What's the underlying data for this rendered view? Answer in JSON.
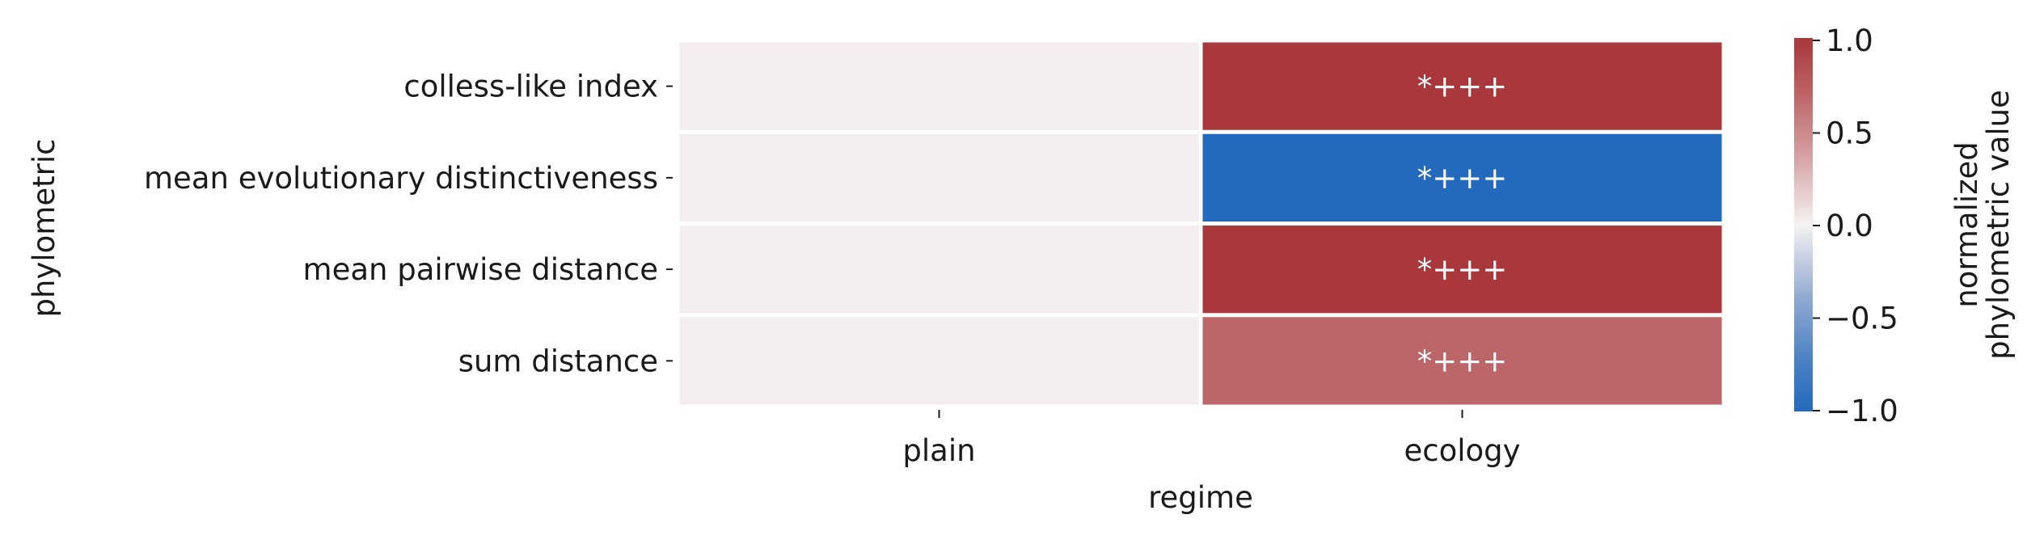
{
  "chart_data": {
    "type": "heatmap",
    "title": "",
    "xlabel": "regime",
    "ylabel": "phylometric",
    "x_categories": [
      "plain",
      "ecology"
    ],
    "y_categories": [
      "colless-like index",
      "mean evolutionary distinctiveness",
      "mean pairwise distance",
      "sum distance"
    ],
    "values": [
      [
        0.03,
        1.0
      ],
      [
        0.03,
        -1.0
      ],
      [
        0.03,
        1.0
      ],
      [
        0.03,
        0.75
      ]
    ],
    "annotations": [
      [
        "",
        "*+++"
      ],
      [
        "",
        "*+++"
      ],
      [
        "",
        "*+++"
      ],
      [
        "",
        "*+++"
      ]
    ],
    "colormap": {
      "name": "vlag",
      "low_color": "#2369bd",
      "mid_color": "#f5f3f2",
      "high_color": "#a9373b",
      "vmin": -1.0,
      "vmax": 1.0
    },
    "colorbar": {
      "label_lines": [
        "normalized",
        "phylometric value"
      ],
      "ticks": [
        1.0,
        0.5,
        0.0,
        -0.5,
        -1.0
      ],
      "tick_labels": [
        "1.0",
        "0.5",
        "0.0",
        "−0.5",
        "−1.0"
      ]
    },
    "grid": false
  }
}
